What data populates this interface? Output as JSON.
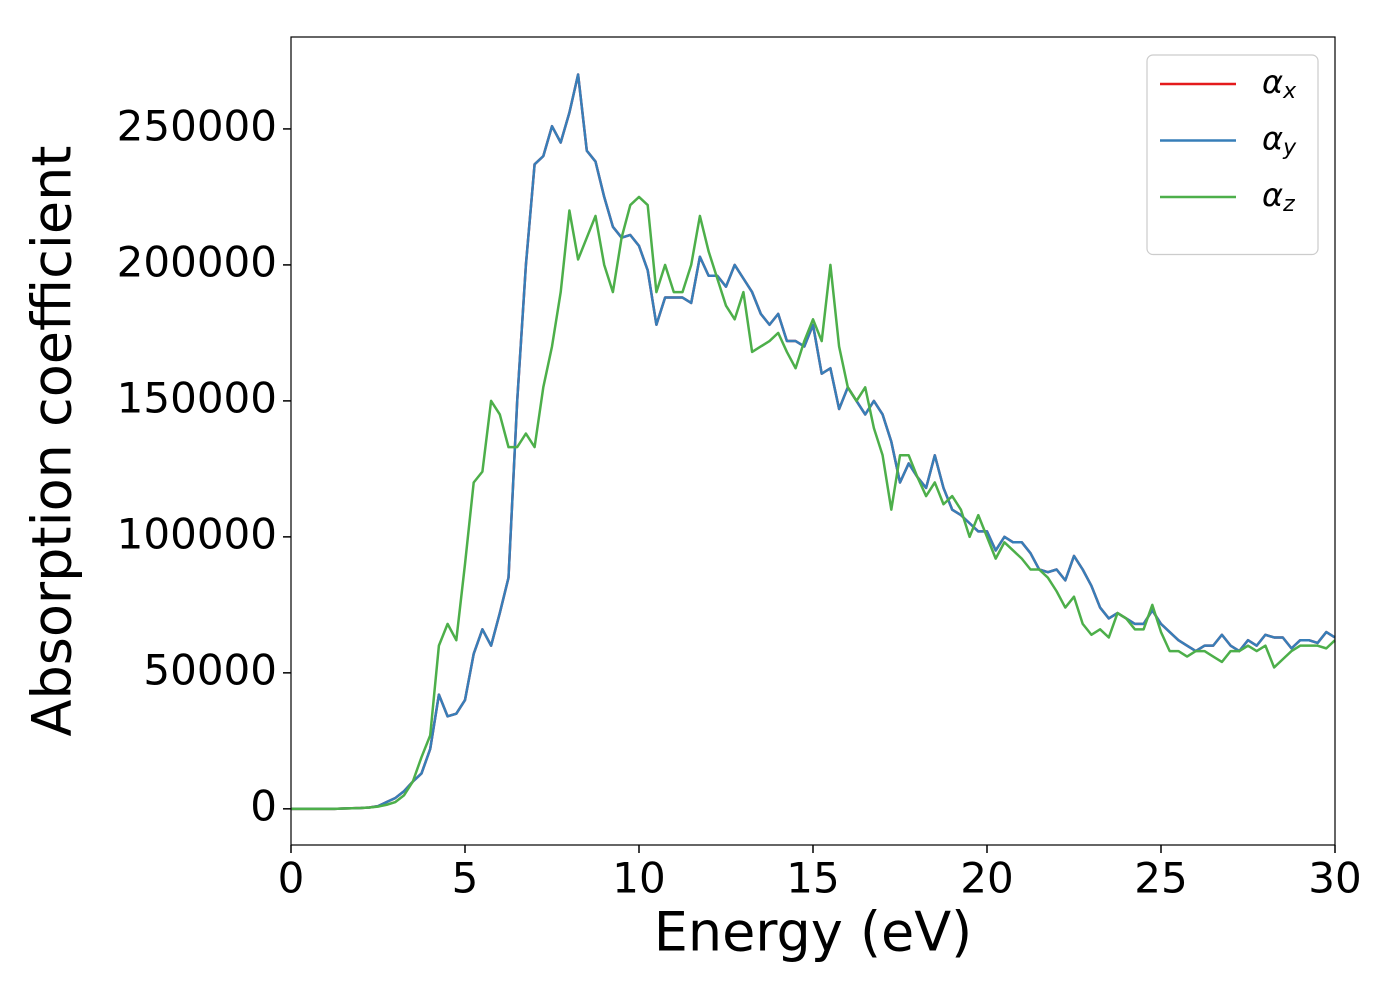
{
  "chart_data": {
    "type": "line",
    "xlabel": "Energy (eV)",
    "ylabel": "Absorption coefficient",
    "x": [
      0,
      0.25,
      0.5,
      0.75,
      1,
      1.25,
      1.5,
      1.75,
      2,
      2.25,
      2.5,
      2.75,
      3,
      3.25,
      3.5,
      3.75,
      4,
      4.25,
      4.5,
      4.75,
      5,
      5.25,
      5.5,
      5.75,
      6,
      6.25,
      6.5,
      6.75,
      7,
      7.25,
      7.5,
      7.75,
      8,
      8.25,
      8.5,
      8.75,
      9,
      9.25,
      9.5,
      9.75,
      10,
      10.25,
      10.5,
      10.75,
      11,
      11.25,
      11.5,
      11.75,
      12,
      12.25,
      12.5,
      12.75,
      13,
      13.25,
      13.5,
      13.75,
      14,
      14.25,
      14.5,
      14.75,
      15,
      15.25,
      15.5,
      15.75,
      16,
      16.25,
      16.5,
      16.75,
      17,
      17.25,
      17.5,
      17.75,
      18,
      18.25,
      18.5,
      18.75,
      19,
      19.25,
      19.5,
      19.75,
      20,
      20.25,
      20.5,
      20.75,
      21,
      21.25,
      21.5,
      21.75,
      22,
      22.25,
      22.5,
      22.75,
      23,
      23.25,
      23.5,
      23.75,
      24,
      24.25,
      24.5,
      24.75,
      25,
      25.25,
      25.5,
      25.75,
      26,
      26.25,
      26.5,
      26.75,
      27,
      27.25,
      27.5,
      27.75,
      28,
      28.25,
      28.5,
      28.75,
      29,
      29.25,
      29.5,
      29.75,
      30
    ],
    "series": [
      {
        "name": "αx",
        "color": "#e41a1c",
        "values": [
          0,
          0,
          0,
          0,
          0,
          0,
          100,
          200,
          300,
          500,
          1000,
          2500,
          4000,
          6500,
          10000,
          13000,
          22000,
          42000,
          34000,
          35000,
          40000,
          57000,
          66000,
          60000,
          72000,
          85000,
          150000,
          200000,
          237000,
          240000,
          251000,
          245000,
          256000,
          270000,
          242000,
          238000,
          225000,
          214000,
          210000,
          211000,
          207000,
          198000,
          178000,
          188000,
          188000,
          188000,
          186000,
          203000,
          196000,
          196000,
          192000,
          200000,
          195000,
          190000,
          182000,
          178000,
          182000,
          172000,
          172000,
          170000,
          178000,
          160000,
          162000,
          147000,
          155000,
          150000,
          145000,
          150000,
          145000,
          135000,
          120000,
          127000,
          122000,
          118000,
          130000,
          118000,
          110000,
          108000,
          105000,
          102000,
          102000,
          95000,
          100000,
          98000,
          98000,
          94000,
          88000,
          87000,
          88000,
          84000,
          93000,
          88000,
          82000,
          74000,
          70000,
          72000,
          70000,
          68000,
          68000,
          73000,
          68000,
          65000,
          62000,
          60000,
          58000,
          60000,
          60000,
          64000,
          60000,
          58000,
          62000,
          60000,
          64000,
          63000,
          63000,
          59000,
          62000,
          62000,
          61000,
          65000,
          63000
        ]
      },
      {
        "name": "αy",
        "color": "#377eb8",
        "values": [
          0,
          0,
          0,
          0,
          0,
          0,
          100,
          200,
          300,
          500,
          1000,
          2500,
          4000,
          6500,
          10000,
          13000,
          22000,
          42000,
          34000,
          35000,
          40000,
          57000,
          66000,
          60000,
          72000,
          85000,
          150000,
          200000,
          237000,
          240000,
          251000,
          245000,
          256000,
          270000,
          242000,
          238000,
          225000,
          214000,
          210000,
          211000,
          207000,
          198000,
          178000,
          188000,
          188000,
          188000,
          186000,
          203000,
          196000,
          196000,
          192000,
          200000,
          195000,
          190000,
          182000,
          178000,
          182000,
          172000,
          172000,
          170000,
          178000,
          160000,
          162000,
          147000,
          155000,
          150000,
          145000,
          150000,
          145000,
          135000,
          120000,
          127000,
          122000,
          118000,
          130000,
          118000,
          110000,
          108000,
          105000,
          102000,
          102000,
          95000,
          100000,
          98000,
          98000,
          94000,
          88000,
          87000,
          88000,
          84000,
          93000,
          88000,
          82000,
          74000,
          70000,
          72000,
          70000,
          68000,
          68000,
          73000,
          68000,
          65000,
          62000,
          60000,
          58000,
          60000,
          60000,
          64000,
          60000,
          58000,
          62000,
          60000,
          64000,
          63000,
          63000,
          59000,
          62000,
          62000,
          61000,
          65000,
          63000
        ]
      },
      {
        "name": "αz",
        "color": "#4daf4a",
        "values": [
          0,
          0,
          0,
          0,
          0,
          0,
          100,
          200,
          300,
          500,
          800,
          1500,
          2500,
          5000,
          10000,
          19000,
          27000,
          60000,
          68000,
          62000,
          90000,
          120000,
          124000,
          150000,
          145000,
          133000,
          133000,
          138000,
          133000,
          155000,
          170000,
          190000,
          220000,
          202000,
          210000,
          218000,
          200000,
          190000,
          210000,
          222000,
          225000,
          222000,
          190000,
          200000,
          190000,
          190000,
          200000,
          218000,
          205000,
          195000,
          185000,
          180000,
          190000,
          168000,
          170000,
          172000,
          175000,
          168000,
          162000,
          172000,
          180000,
          172000,
          200000,
          170000,
          155000,
          150000,
          155000,
          140000,
          130000,
          110000,
          130000,
          130000,
          122000,
          115000,
          120000,
          112000,
          115000,
          110000,
          100000,
          108000,
          100000,
          92000,
          98000,
          95000,
          92000,
          88000,
          88000,
          85000,
          80000,
          74000,
          78000,
          68000,
          64000,
          66000,
          63000,
          72000,
          70000,
          66000,
          66000,
          75000,
          65000,
          58000,
          58000,
          56000,
          58000,
          58000,
          56000,
          54000,
          58000,
          58000,
          60000,
          58000,
          60000,
          52000,
          55000,
          58000,
          60000,
          60000,
          60000,
          59000,
          62000
        ]
      }
    ],
    "xlim": [
      0,
      30
    ],
    "xticks": [
      0,
      5,
      10,
      15,
      20,
      25,
      30
    ],
    "ylim": [
      -13300,
      283800
    ],
    "yticks": [
      0,
      50000,
      100000,
      150000,
      200000,
      250000
    ],
    "legend": "upper right"
  }
}
